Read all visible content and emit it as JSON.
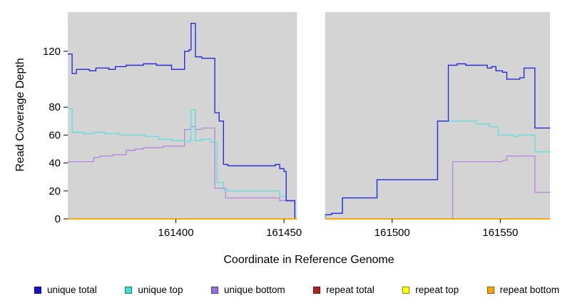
{
  "chart_data": {
    "type": "line",
    "style": "step",
    "title": "",
    "xlabel": "Coordinate in Reference Genome",
    "ylabel": "Read Coverage Depth",
    "xlim": [
      161350,
      161573
    ],
    "ylim": [
      0,
      148
    ],
    "x_ticks": [
      161400,
      161450,
      161500,
      161550
    ],
    "y_ticks": [
      0,
      20,
      40,
      60,
      80,
      120
    ],
    "grid": false,
    "plot_bg": "#d4d4d4",
    "gap_region": {
      "from": 161456,
      "to": 161469,
      "color": "#ffffff"
    },
    "series": [
      {
        "name": "unique bottom",
        "color": "#b48cd8",
        "points": [
          [
            161350,
            41
          ],
          [
            161360,
            41
          ],
          [
            161362,
            44
          ],
          [
            161365,
            45
          ],
          [
            161371,
            46
          ],
          [
            161377,
            49
          ],
          [
            161381,
            50
          ],
          [
            161385,
            51
          ],
          [
            161394,
            52
          ],
          [
            161404,
            64
          ],
          [
            161407,
            66
          ],
          [
            161409,
            64
          ],
          [
            161412,
            65
          ],
          [
            161418,
            22
          ],
          [
            161423,
            15
          ],
          [
            161444,
            15
          ],
          [
            161448,
            13
          ],
          [
            161452,
            13
          ],
          [
            161455,
            0
          ],
          [
            161528,
            41
          ],
          [
            161549,
            41
          ],
          [
            161551,
            42
          ],
          [
            161553,
            45
          ],
          [
            161563,
            45
          ],
          [
            161566,
            19
          ]
        ]
      },
      {
        "name": "unique top",
        "color": "#63dede",
        "points": [
          [
            161350,
            79
          ],
          [
            161352,
            62
          ],
          [
            161357,
            61
          ],
          [
            161362,
            62
          ],
          [
            161367,
            61
          ],
          [
            161374,
            60
          ],
          [
            161382,
            60
          ],
          [
            161386,
            59
          ],
          [
            161392,
            57
          ],
          [
            161398,
            56
          ],
          [
            161404,
            55
          ],
          [
            161406,
            56
          ],
          [
            161407,
            78
          ],
          [
            161409,
            56
          ],
          [
            161412,
            57
          ],
          [
            161416,
            55
          ],
          [
            161419,
            26
          ],
          [
            161422,
            21
          ],
          [
            161424,
            20
          ],
          [
            161444,
            20
          ],
          [
            161448,
            16
          ],
          [
            161451,
            13
          ],
          [
            161455,
            0
          ],
          [
            161469,
            3
          ],
          [
            161472,
            4
          ],
          [
            161477,
            15
          ],
          [
            161493,
            28
          ],
          [
            161521,
            70
          ],
          [
            161536,
            70
          ],
          [
            161539,
            68
          ],
          [
            161545,
            66
          ],
          [
            161549,
            60
          ],
          [
            161556,
            59
          ],
          [
            161558,
            60
          ],
          [
            161566,
            48
          ]
        ]
      },
      {
        "name": "unique total",
        "color": "#2b2bd6",
        "points": [
          [
            161350,
            118
          ],
          [
            161352,
            104
          ],
          [
            161354,
            107
          ],
          [
            161360,
            106
          ],
          [
            161363,
            108
          ],
          [
            161369,
            107
          ],
          [
            161372,
            109
          ],
          [
            161377,
            110
          ],
          [
            161385,
            111
          ],
          [
            161391,
            110
          ],
          [
            161398,
            107
          ],
          [
            161404,
            120
          ],
          [
            161406,
            121
          ],
          [
            161407,
            140
          ],
          [
            161409,
            116
          ],
          [
            161412,
            115
          ],
          [
            161418,
            76
          ],
          [
            161420,
            70
          ],
          [
            161422,
            39
          ],
          [
            161424,
            38
          ],
          [
            161444,
            38
          ],
          [
            161446,
            39
          ],
          [
            161448,
            36
          ],
          [
            161450,
            34
          ],
          [
            161451,
            13
          ],
          [
            161455,
            0
          ],
          [
            161469,
            3
          ],
          [
            161472,
            4
          ],
          [
            161477,
            15
          ],
          [
            161493,
            28
          ],
          [
            161521,
            70
          ],
          [
            161526,
            110
          ],
          [
            161530,
            111
          ],
          [
            161534,
            110
          ],
          [
            161542,
            110
          ],
          [
            161544,
            108
          ],
          [
            161546,
            109
          ],
          [
            161548,
            106
          ],
          [
            161551,
            105
          ],
          [
            161553,
            100
          ],
          [
            161559,
            101
          ],
          [
            161561,
            108
          ],
          [
            161566,
            65
          ]
        ]
      },
      {
        "name": "repeat total",
        "color": "#b22222",
        "points": [
          [
            161350,
            0
          ]
        ]
      },
      {
        "name": "repeat top",
        "color": "#ffff00",
        "points": [
          [
            161350,
            0
          ]
        ]
      },
      {
        "name": "repeat bottom",
        "color": "#ffa500",
        "points": [
          [
            161350,
            0
          ]
        ]
      }
    ],
    "legend": [
      {
        "label": "unique total",
        "color": "#1515c8"
      },
      {
        "label": "unique top",
        "color": "#40e0d0"
      },
      {
        "label": "unique bottom",
        "color": "#9370db"
      },
      {
        "label": "repeat total",
        "color": "#b22222"
      },
      {
        "label": "repeat top",
        "color": "#ffff00"
      },
      {
        "label": "repeat bottom",
        "color": "#ffa500"
      }
    ],
    "legend_position": "bottom"
  }
}
